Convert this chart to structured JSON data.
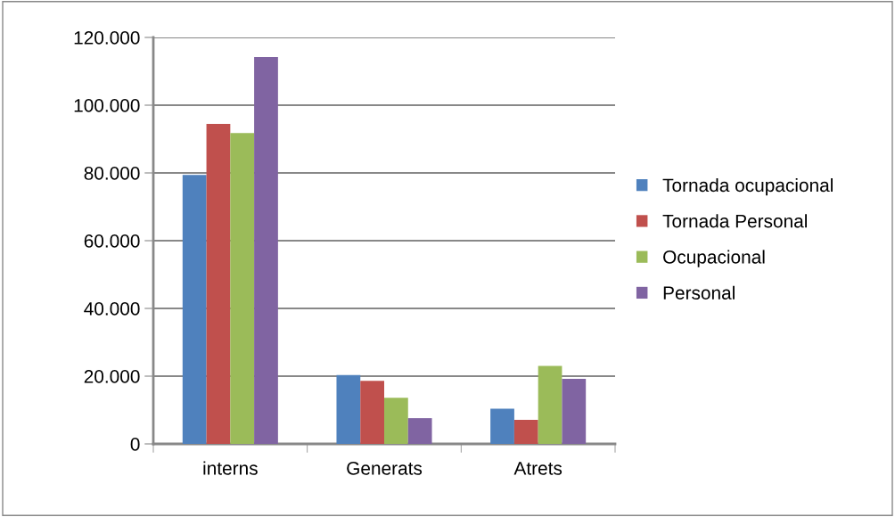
{
  "chart_data": {
    "type": "bar",
    "categories": [
      "interns",
      "Generats",
      "Atrets"
    ],
    "series": [
      {
        "name": "Tornada ocupacional",
        "color": "#4f81bd",
        "values": [
          79400,
          20300,
          10400
        ]
      },
      {
        "name": "Tornada Personal",
        "color": "#c0504d",
        "values": [
          94500,
          18600,
          7100
        ]
      },
      {
        "name": "Ocupacional",
        "color": "#9bbb59",
        "values": [
          91800,
          13600,
          23000
        ]
      },
      {
        "name": "Personal",
        "color": "#8064a2",
        "values": [
          114200,
          7600,
          19200
        ]
      }
    ],
    "ylim": [
      0,
      120000
    ],
    "yticks": [
      0,
      {
        "value": 20000,
        "label": "20.000"
      },
      {
        "value": 40000,
        "label": "40.000"
      },
      {
        "value": 60000,
        "label": "60.000"
      },
      {
        "value": 80000,
        "label": "80.000"
      },
      {
        "value": 100000,
        "label": "100.000"
      },
      {
        "value": 120000,
        "label": "120.000"
      }
    ],
    "grid": "y",
    "legend": "right"
  }
}
